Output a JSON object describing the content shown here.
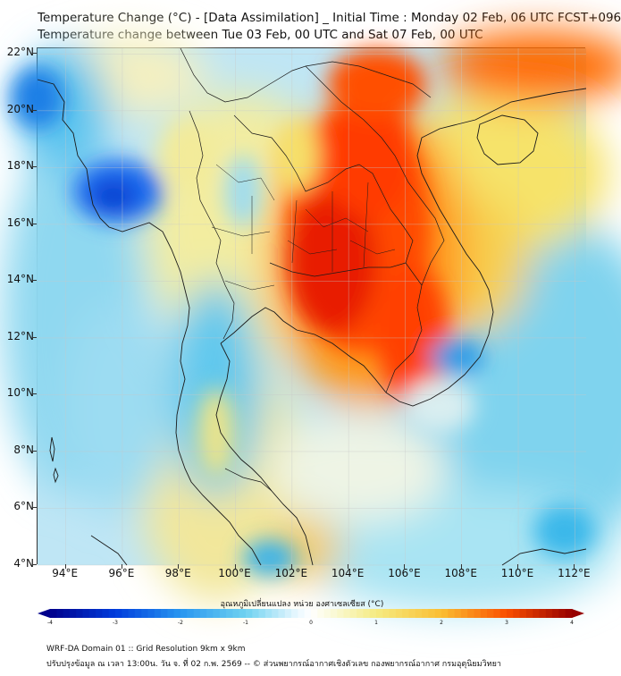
{
  "header": {
    "title_line1": "Temperature Change (°C) - [Data Assimilation] _ Initial Time : Monday 02 Feb, 06 UTC FCST+096",
    "title_line2": "Temperature change between Tue 03 Feb, 00 UTC and Sat 07 Feb, 00 UTC"
  },
  "map": {
    "lat_labels": [
      "22°N",
      "20°N",
      "18°N",
      "16°N",
      "14°N",
      "12°N",
      "10°N",
      "8°N",
      "6°N",
      "4°N"
    ],
    "lon_labels": [
      "94°E",
      "96°E",
      "98°E",
      "100°E",
      "102°E",
      "104°E",
      "106°E",
      "108°E",
      "110°E",
      "112°E"
    ],
    "lat_range": [
      4,
      22.2
    ],
    "lon_range": [
      93,
      112.4
    ],
    "colors": {
      "cold_max": "#00008b",
      "cold": "#1a8cff",
      "cool": "#3fc1ec",
      "neutral": "#f5faff",
      "warm": "#f5e56b",
      "hot": "#ff5a00",
      "hot_max": "#9b0000",
      "land_outline": "#1a1a1a"
    }
  },
  "colorbar": {
    "title": "อุณหภูมิเปลี่ยนแปลง หน่วย องศาเซลเซียส (°C)",
    "ticks": [
      "-4",
      "-3",
      "-2",
      "-1",
      "0",
      "1",
      "2",
      "3",
      "4"
    ],
    "range": [
      -4,
      4
    ]
  },
  "footer": {
    "line1": "WRF-DA Domain 01 :: Grid Resolution 9km x 9km",
    "line2": "ปรับปรุงข้อมูล ณ เวลา 13:00น. วัน จ. ที่ 02 ก.พ. 2569 -- © ส่วนพยากรณ์อากาศเชิงตัวเลข กองพยากรณ์อากาศ กรมอุตุนิยมวิทยา"
  }
}
